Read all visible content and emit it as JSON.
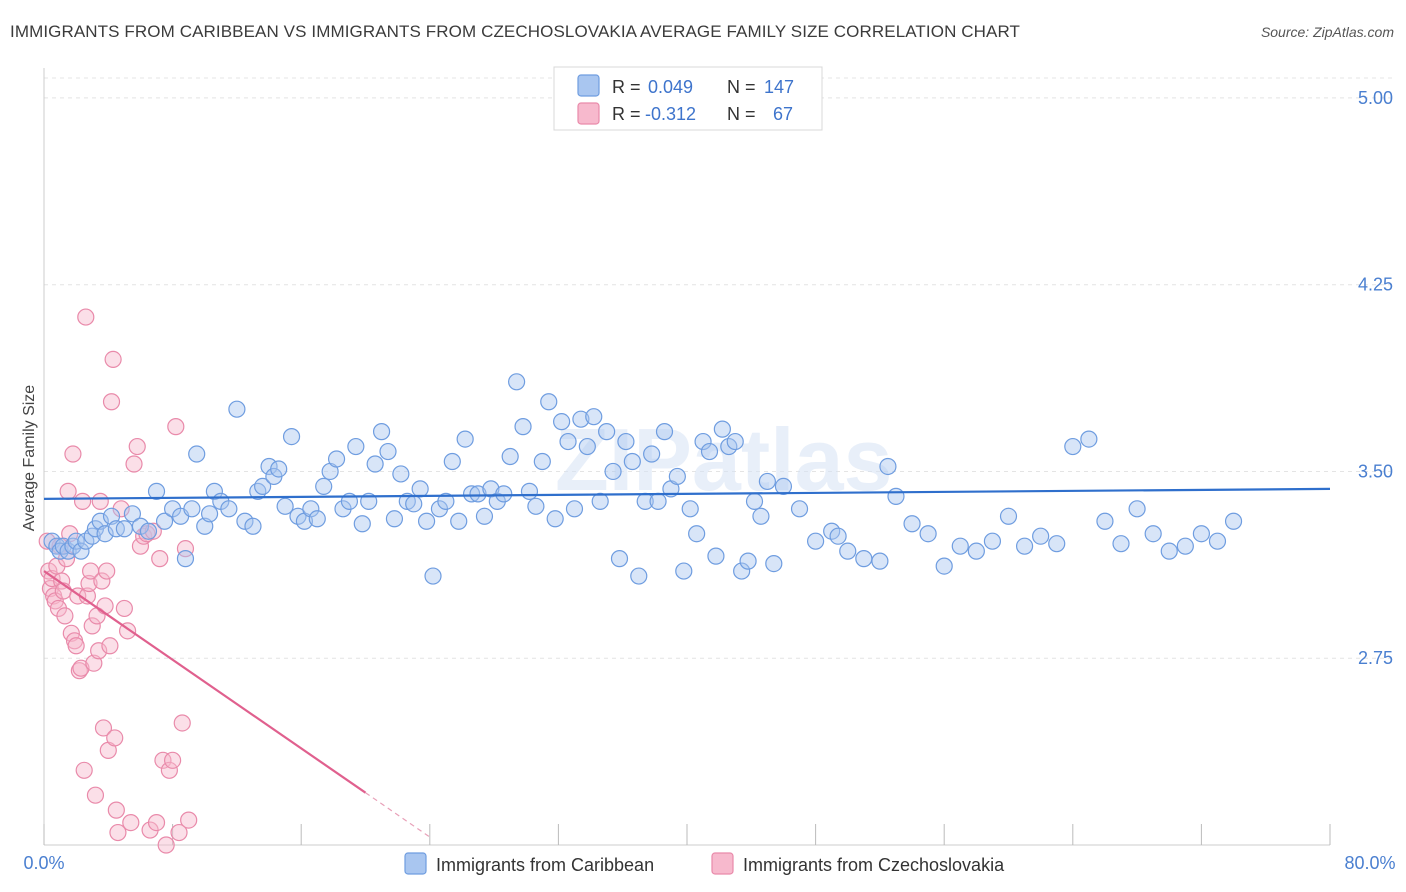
{
  "header": {
    "title": "IMMIGRANTS FROM CARIBBEAN VS IMMIGRANTS FROM CZECHOSLOVAKIA AVERAGE FAMILY SIZE CORRELATION CHART",
    "source": "Source: ZipAtlas.com"
  },
  "watermark": "ZIPatlas",
  "legend": {
    "r_label": "R =",
    "n_label": "N =",
    "items": [
      {
        "r": "0.049",
        "n": "147",
        "color": "#a9c6f0",
        "border": "#6f9de0"
      },
      {
        "r": "-0.312",
        "n": "67",
        "color": "#f7b9cd",
        "border": "#e98aaa"
      }
    ]
  },
  "bottom_legend": [
    {
      "label": "Immigrants from Caribbean",
      "color": "#a9c6f0",
      "border": "#6f9de0"
    },
    {
      "label": "Immigrants from Czechoslovakia",
      "color": "#f7b9cd",
      "border": "#e98aaa"
    }
  ],
  "chart_data": {
    "type": "scatter",
    "title": "IMMIGRANTS FROM CARIBBEAN VS IMMIGRANTS FROM CZECHOSLOVAKIA AVERAGE FAMILY SIZE CORRELATION CHART",
    "xlabel": "",
    "ylabel": "Average Family Size",
    "xlim": [
      0,
      80
    ],
    "ylim": [
      2.0,
      5.08
    ],
    "x_tick_labels": [
      "0.0%",
      "80.0%"
    ],
    "y_ticks": [
      2.75,
      3.5,
      4.25,
      5.0
    ],
    "y_tick_labels": [
      "2.75",
      "3.50",
      "4.25",
      "5.00"
    ],
    "grid": true,
    "series": [
      {
        "name": "Immigrants from Caribbean",
        "color": "#6f9de0",
        "trend": {
          "x": [
            0,
            80
          ],
          "y": [
            3.39,
            3.43
          ]
        },
        "points": [
          [
            0.5,
            3.22
          ],
          [
            0.8,
            3.2
          ],
          [
            1.0,
            3.18
          ],
          [
            1.2,
            3.2
          ],
          [
            1.5,
            3.18
          ],
          [
            1.8,
            3.2
          ],
          [
            2.0,
            3.22
          ],
          [
            2.3,
            3.18
          ],
          [
            2.6,
            3.22
          ],
          [
            3.0,
            3.24
          ],
          [
            3.2,
            3.27
          ],
          [
            3.5,
            3.3
          ],
          [
            3.8,
            3.25
          ],
          [
            4.2,
            3.32
          ],
          [
            4.5,
            3.27
          ],
          [
            5.0,
            3.27
          ],
          [
            5.5,
            3.33
          ],
          [
            6.0,
            3.28
          ],
          [
            6.5,
            3.26
          ],
          [
            7.0,
            3.42
          ],
          [
            7.5,
            3.3
          ],
          [
            8.0,
            3.35
          ],
          [
            8.5,
            3.32
          ],
          [
            8.8,
            3.15
          ],
          [
            9.2,
            3.35
          ],
          [
            9.5,
            3.57
          ],
          [
            10.0,
            3.28
          ],
          [
            10.3,
            3.33
          ],
          [
            10.6,
            3.42
          ],
          [
            11.0,
            3.38
          ],
          [
            11.5,
            3.35
          ],
          [
            12.0,
            3.75
          ],
          [
            12.5,
            3.3
          ],
          [
            13.0,
            3.28
          ],
          [
            13.3,
            3.42
          ],
          [
            13.6,
            3.44
          ],
          [
            14.0,
            3.52
          ],
          [
            14.3,
            3.48
          ],
          [
            14.6,
            3.51
          ],
          [
            15.0,
            3.36
          ],
          [
            15.4,
            3.64
          ],
          [
            15.8,
            3.32
          ],
          [
            16.2,
            3.3
          ],
          [
            16.6,
            3.35
          ],
          [
            17.0,
            3.31
          ],
          [
            17.4,
            3.44
          ],
          [
            17.8,
            3.5
          ],
          [
            18.2,
            3.55
          ],
          [
            18.6,
            3.35
          ],
          [
            19.0,
            3.38
          ],
          [
            19.4,
            3.6
          ],
          [
            19.8,
            3.29
          ],
          [
            20.2,
            3.38
          ],
          [
            20.6,
            3.53
          ],
          [
            21.0,
            3.66
          ],
          [
            21.4,
            3.58
          ],
          [
            21.8,
            3.31
          ],
          [
            22.2,
            3.49
          ],
          [
            22.6,
            3.38
          ],
          [
            23.0,
            3.37
          ],
          [
            23.4,
            3.43
          ],
          [
            23.8,
            3.3
          ],
          [
            24.2,
            3.08
          ],
          [
            24.6,
            3.35
          ],
          [
            25.0,
            3.38
          ],
          [
            25.4,
            3.54
          ],
          [
            25.8,
            3.3
          ],
          [
            26.2,
            3.63
          ],
          [
            26.6,
            3.41
          ],
          [
            27.0,
            3.41
          ],
          [
            27.4,
            3.32
          ],
          [
            27.8,
            3.43
          ],
          [
            28.2,
            3.38
          ],
          [
            28.6,
            3.41
          ],
          [
            29.0,
            3.56
          ],
          [
            29.4,
            3.86
          ],
          [
            29.8,
            3.68
          ],
          [
            30.2,
            3.42
          ],
          [
            30.6,
            3.36
          ],
          [
            31.0,
            3.54
          ],
          [
            31.4,
            3.78
          ],
          [
            31.8,
            3.31
          ],
          [
            32.2,
            3.7
          ],
          [
            32.6,
            3.62
          ],
          [
            33.0,
            3.35
          ],
          [
            33.4,
            3.71
          ],
          [
            33.8,
            3.6
          ],
          [
            34.2,
            3.72
          ],
          [
            34.6,
            3.38
          ],
          [
            35.0,
            3.66
          ],
          [
            35.4,
            3.5
          ],
          [
            35.8,
            3.15
          ],
          [
            36.2,
            3.62
          ],
          [
            36.6,
            3.54
          ],
          [
            37.0,
            3.08
          ],
          [
            37.4,
            3.38
          ],
          [
            37.8,
            3.57
          ],
          [
            38.2,
            3.38
          ],
          [
            38.6,
            3.66
          ],
          [
            39.0,
            3.43
          ],
          [
            39.4,
            3.48
          ],
          [
            39.8,
            3.1
          ],
          [
            40.2,
            3.35
          ],
          [
            40.6,
            3.25
          ],
          [
            41.0,
            3.62
          ],
          [
            41.4,
            3.58
          ],
          [
            41.8,
            3.16
          ],
          [
            42.2,
            3.67
          ],
          [
            42.6,
            3.6
          ],
          [
            43.0,
            3.62
          ],
          [
            43.4,
            3.1
          ],
          [
            43.8,
            3.14
          ],
          [
            44.2,
            3.38
          ],
          [
            44.6,
            3.32
          ],
          [
            45.0,
            3.46
          ],
          [
            45.4,
            3.13
          ],
          [
            46.0,
            3.44
          ],
          [
            47.0,
            3.35
          ],
          [
            48.0,
            3.22
          ],
          [
            49.0,
            3.26
          ],
          [
            49.4,
            3.24
          ],
          [
            50.0,
            3.18
          ],
          [
            51.0,
            3.15
          ],
          [
            52.0,
            3.14
          ],
          [
            52.5,
            3.52
          ],
          [
            53.0,
            3.4
          ],
          [
            54.0,
            3.29
          ],
          [
            55.0,
            3.25
          ],
          [
            56.0,
            3.12
          ],
          [
            57.0,
            3.2
          ],
          [
            58.0,
            3.18
          ],
          [
            59.0,
            3.22
          ],
          [
            60.0,
            3.32
          ],
          [
            61.0,
            3.2
          ],
          [
            62.0,
            3.24
          ],
          [
            63.0,
            3.21
          ],
          [
            64.0,
            3.6
          ],
          [
            65.0,
            3.63
          ],
          [
            66.0,
            3.3
          ],
          [
            67.0,
            3.21
          ],
          [
            68.0,
            3.35
          ],
          [
            69.0,
            3.25
          ],
          [
            70.0,
            3.18
          ],
          [
            71.0,
            3.2
          ],
          [
            72.0,
            3.25
          ],
          [
            73.0,
            3.22
          ],
          [
            74.0,
            3.3
          ]
        ]
      },
      {
        "name": "Immigrants from Czechoslovakia",
        "color": "#e98aaa",
        "trend": {
          "x": [
            0,
            20
          ],
          "y": [
            3.1,
            2.21
          ]
        },
        "points": [
          [
            0.2,
            3.22
          ],
          [
            0.3,
            3.1
          ],
          [
            0.4,
            3.03
          ],
          [
            0.5,
            3.07
          ],
          [
            0.6,
            3.0
          ],
          [
            0.7,
            2.98
          ],
          [
            0.8,
            3.12
          ],
          [
            0.9,
            2.95
          ],
          [
            1.0,
            3.2
          ],
          [
            1.1,
            3.06
          ],
          [
            1.2,
            3.02
          ],
          [
            1.3,
            2.92
          ],
          [
            1.4,
            3.15
          ],
          [
            1.5,
            3.42
          ],
          [
            1.6,
            3.25
          ],
          [
            1.7,
            2.85
          ],
          [
            1.8,
            3.57
          ],
          [
            1.9,
            2.82
          ],
          [
            2.0,
            2.8
          ],
          [
            2.1,
            3.0
          ],
          [
            2.2,
            2.7
          ],
          [
            2.3,
            2.71
          ],
          [
            2.4,
            3.38
          ],
          [
            2.5,
            2.3
          ],
          [
            2.6,
            4.12
          ],
          [
            2.7,
            3.0
          ],
          [
            2.8,
            3.05
          ],
          [
            2.9,
            3.1
          ],
          [
            3.0,
            2.88
          ],
          [
            3.1,
            2.73
          ],
          [
            3.2,
            2.2
          ],
          [
            3.3,
            2.92
          ],
          [
            3.4,
            2.78
          ],
          [
            3.5,
            3.38
          ],
          [
            3.6,
            3.06
          ],
          [
            3.7,
            2.47
          ],
          [
            3.8,
            2.96
          ],
          [
            3.9,
            3.1
          ],
          [
            4.0,
            2.38
          ],
          [
            4.1,
            2.8
          ],
          [
            4.2,
            3.78
          ],
          [
            4.3,
            3.95
          ],
          [
            4.4,
            2.43
          ],
          [
            4.5,
            2.14
          ],
          [
            4.6,
            2.05
          ],
          [
            4.8,
            3.35
          ],
          [
            5.0,
            2.95
          ],
          [
            5.2,
            2.86
          ],
          [
            5.4,
            2.09
          ],
          [
            5.6,
            3.53
          ],
          [
            5.8,
            3.6
          ],
          [
            6.0,
            3.2
          ],
          [
            6.2,
            3.24
          ],
          [
            6.4,
            3.25
          ],
          [
            6.6,
            2.06
          ],
          [
            6.8,
            3.26
          ],
          [
            7.0,
            2.09
          ],
          [
            7.2,
            3.15
          ],
          [
            7.4,
            2.34
          ],
          [
            7.6,
            2.0
          ],
          [
            7.8,
            2.3
          ],
          [
            8.0,
            2.34
          ],
          [
            8.2,
            3.68
          ],
          [
            8.4,
            2.05
          ],
          [
            8.6,
            2.49
          ],
          [
            8.8,
            3.19
          ],
          [
            9.0,
            2.1
          ]
        ]
      }
    ]
  }
}
